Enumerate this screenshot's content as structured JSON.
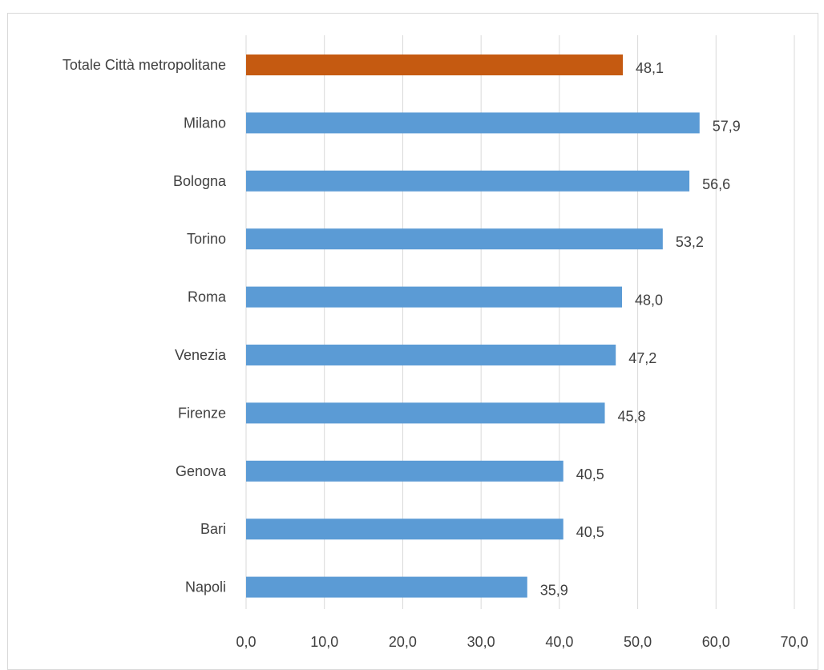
{
  "chart_data": {
    "type": "bar",
    "orientation": "horizontal",
    "categories": [
      "Totale Città metropolitane",
      "Milano",
      "Bologna",
      "Torino",
      "Roma",
      "Venezia",
      "Firenze",
      "Genova",
      "Bari",
      "Napoli"
    ],
    "values": [
      48.1,
      57.9,
      56.6,
      53.2,
      48.0,
      47.2,
      45.8,
      40.5,
      40.5,
      35.9
    ],
    "data_labels": [
      "48,1",
      "57,9",
      "56,6",
      "53,2",
      "48,0",
      "47,2",
      "45,8",
      "40,5",
      "40,5",
      "35,9"
    ],
    "bar_colors": [
      "#c55a11",
      "#5b9bd5",
      "#5b9bd5",
      "#5b9bd5",
      "#5b9bd5",
      "#5b9bd5",
      "#5b9bd5",
      "#5b9bd5",
      "#5b9bd5",
      "#5b9bd5"
    ],
    "xlim": [
      0,
      70
    ],
    "x_ticks": [
      0,
      10,
      20,
      30,
      40,
      50,
      60,
      70
    ],
    "x_tick_labels": [
      "0,0",
      "10,0",
      "20,0",
      "30,0",
      "40,0",
      "50,0",
      "60,0",
      "70,0"
    ],
    "grid": "vertical",
    "grid_color": "#d9d9d9",
    "legend": "none",
    "title": "",
    "xlabel": "",
    "ylabel": ""
  }
}
